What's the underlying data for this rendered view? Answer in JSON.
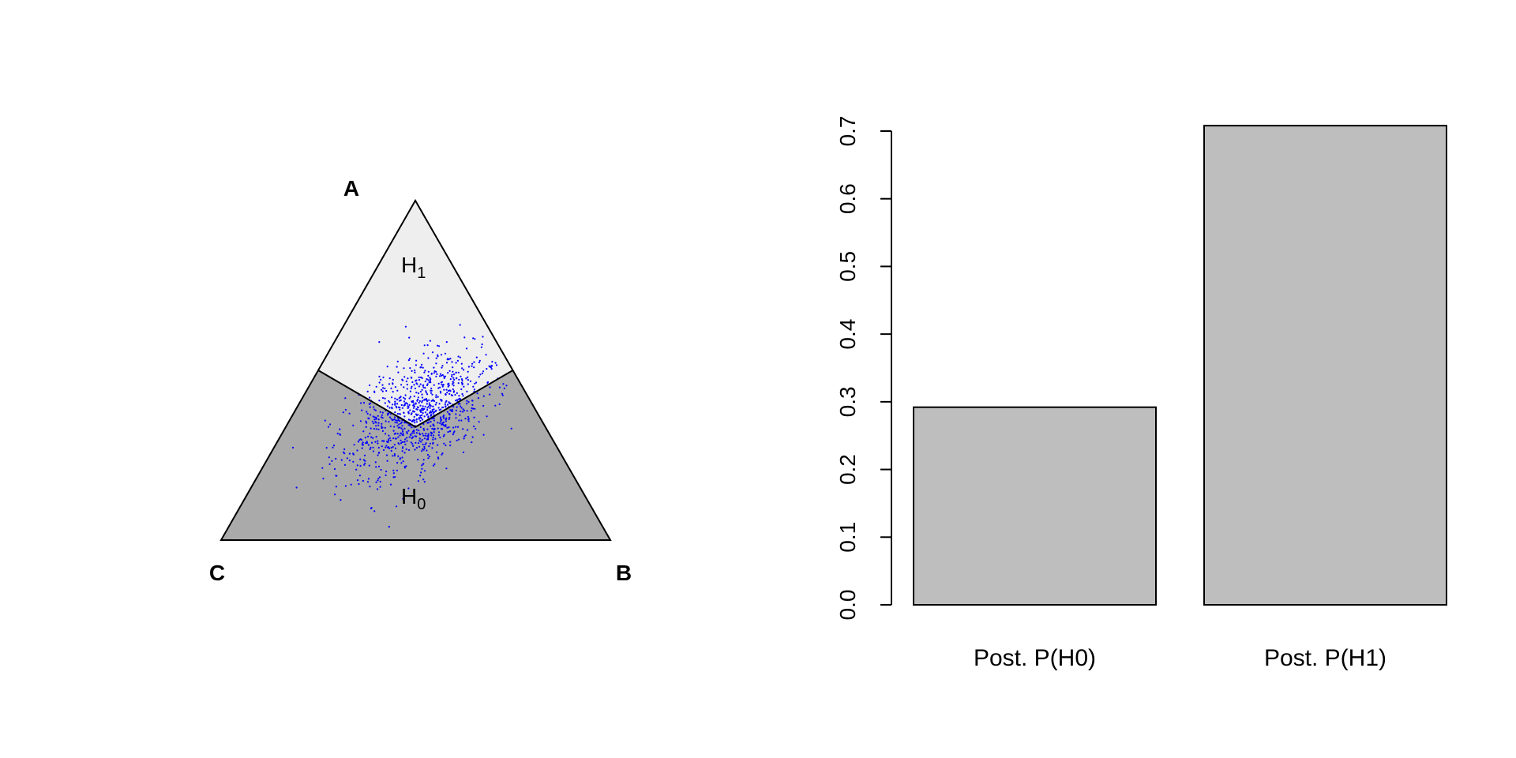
{
  "chart_data": [
    {
      "type": "scatter",
      "subtype": "ternary",
      "vertices": [
        "A",
        "B",
        "C"
      ],
      "regions": [
        {
          "name": "H",
          "sub": "1",
          "color": "#eeeeee"
        },
        {
          "name": "H",
          "sub": "0",
          "color": "#aaaaaa"
        }
      ],
      "point_color": "#0000ff",
      "point_count": 1000,
      "center": {
        "A": 0.37,
        "B": 0.32,
        "C": 0.31
      },
      "spread": 0.1
    },
    {
      "type": "bar",
      "categories": [
        "Post. P(H0)",
        "Post. P(H1)"
      ],
      "values": [
        0.292,
        0.708
      ],
      "ylim": [
        0,
        0.7
      ],
      "yticks": [
        "0.0",
        "0.1",
        "0.2",
        "0.3",
        "0.4",
        "0.5",
        "0.6",
        "0.7"
      ],
      "bar_color": "#bebebe",
      "xlabel": "",
      "ylabel": ""
    }
  ]
}
